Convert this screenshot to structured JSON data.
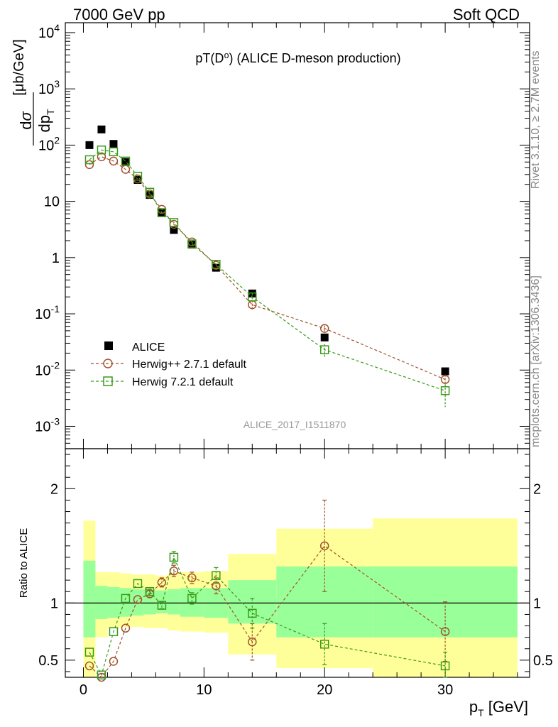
{
  "header": {
    "energy": "7000 GeV pp",
    "category": "Soft QCD"
  },
  "side_labels": {
    "rivet": "Rivet 3.1.10, ≥ 2.7M events",
    "source": "mcplots.cern.ch [arXiv:1306.3436]"
  },
  "chart_data": [
    {
      "type": "scatter",
      "title": "pT(D⁰) (ALICE D-meson production)",
      "analysis_label": "ALICE_2017_I1511870",
      "ylabel": "dσ/dp_T [μb/GeV]",
      "yscale": "log",
      "ylim": [
        0.0004,
        15000
      ],
      "xlim": [
        -1.5,
        37
      ],
      "legend_placement": "lower-left",
      "x": [
        0.5,
        1.5,
        2.5,
        3.5,
        4.5,
        5.5,
        6.5,
        7.5,
        9.0,
        11.0,
        14.0,
        20.0,
        30.0
      ],
      "series": [
        {
          "name": "ALICE",
          "color": "#000000",
          "marker": "filled-square",
          "values": [
            100,
            190,
            105,
            50,
            24,
            13,
            6.2,
            3.1,
            1.7,
            0.66,
            0.23,
            0.038,
            0.0095
          ]
        },
        {
          "name": "Herwig++ 2.7.1 default",
          "color": "#a0522d",
          "marker": "open-circle",
          "line": "dashed",
          "values": [
            45,
            62,
            52,
            37,
            25,
            13.5,
            7.2,
            3.9,
            1.9,
            0.73,
            0.145,
            0.055,
            0.0068
          ],
          "yerr_hi": [
            null,
            null,
            null,
            null,
            null,
            null,
            null,
            null,
            null,
            null,
            0.03,
            0.007,
            0.0015
          ],
          "yerr_lo": [
            null,
            null,
            null,
            null,
            null,
            null,
            null,
            null,
            null,
            null,
            0.03,
            0.007,
            0.0015
          ]
        },
        {
          "name": "Herwig 7.2.1 default",
          "color": "#3a9a1a",
          "marker": "open-square",
          "line": "dashed",
          "values": [
            55,
            82,
            76,
            52,
            28,
            14.5,
            6.3,
            4.2,
            1.75,
            0.76,
            0.2,
            0.023,
            0.0043
          ],
          "yerr_hi": [
            null,
            null,
            null,
            null,
            null,
            null,
            null,
            null,
            null,
            null,
            0.03,
            0.006,
            0.0013
          ],
          "yerr_lo": [
            null,
            null,
            null,
            null,
            null,
            null,
            null,
            null,
            null,
            null,
            0.03,
            0.006,
            0.0021
          ]
        }
      ]
    },
    {
      "type": "scatter",
      "ylabel": "Ratio to ALICE",
      "xlabel": "p_T [GeV]",
      "ylim": [
        0.35,
        2.35
      ],
      "xlim": [
        -1.5,
        37
      ],
      "reference": 1,
      "bin_edges": [
        0,
        1,
        2,
        3,
        4,
        5,
        6,
        7,
        8,
        10,
        12,
        16,
        24,
        36
      ],
      "band_stat": {
        "lo": [
          0.7,
          0.86,
          0.87,
          0.88,
          0.89,
          0.9,
          0.91,
          0.9,
          0.88,
          0.87,
          0.82,
          0.7,
          0.7
        ],
        "hi": [
          1.37,
          1.15,
          1.14,
          1.13,
          1.12,
          1.12,
          1.11,
          1.12,
          1.13,
          1.13,
          1.2,
          1.32,
          1.32
        ]
      },
      "band_total": {
        "lo": [
          0.35,
          0.7,
          0.78,
          0.79,
          0.79,
          0.78,
          0.78,
          0.76,
          0.75,
          0.74,
          0.55,
          0.43,
          0.35
        ],
        "hi": [
          1.72,
          1.27,
          1.27,
          1.26,
          1.25,
          1.25,
          1.24,
          1.26,
          1.27,
          1.28,
          1.43,
          1.65,
          1.74
        ]
      },
      "x": [
        0.5,
        1.5,
        2.5,
        3.5,
        4.5,
        5.5,
        6.5,
        7.5,
        9.0,
        11.0,
        14.0,
        20.0,
        30.0
      ],
      "series": [
        {
          "name": "Herwig++ 2.7.1 default",
          "color": "#a0522d",
          "marker": "open-circle",
          "values": [
            0.45,
            0.33,
            0.49,
            0.78,
            1.03,
            1.08,
            1.18,
            1.28,
            1.22,
            1.15,
            0.66,
            1.5,
            0.75
          ],
          "yerr": [
            0,
            0,
            0,
            0,
            0,
            0.03,
            0.04,
            0.05,
            0.05,
            0.07,
            0.16,
            0.4,
            0.26
          ]
        },
        {
          "name": "Herwig 7.2.1 default",
          "color": "#3a9a1a",
          "marker": "open-square",
          "values": [
            0.57,
            0.37,
            0.75,
            1.04,
            1.17,
            1.1,
            0.98,
            1.4,
            1.04,
            1.24,
            0.91,
            0.64,
            0.45
          ],
          "yerr": [
            0,
            0,
            0,
            0,
            0,
            0.02,
            0.03,
            0.05,
            0.05,
            0.07,
            0.13,
            0.18,
            0.12
          ]
        }
      ]
    }
  ]
}
